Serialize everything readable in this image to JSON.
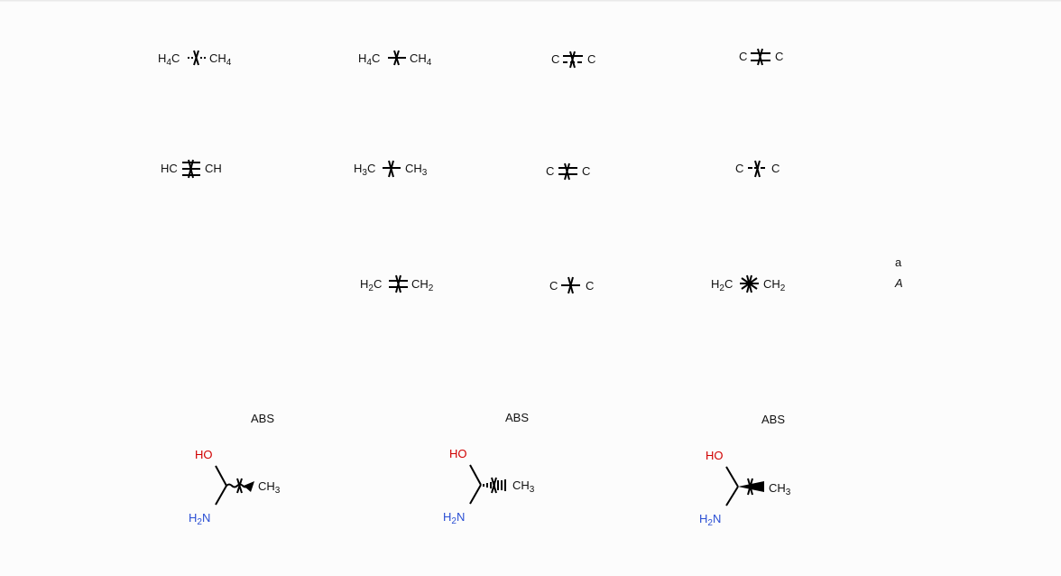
{
  "bond_molecules": [
    {
      "id": "m1",
      "left": {
        "main": "H",
        "sub": "4",
        "tail": "C"
      },
      "right": {
        "main": "CH",
        "sub": "4",
        "tail": ""
      }
    },
    {
      "id": "m2",
      "left": {
        "main": "H",
        "sub": "4",
        "tail": "C"
      },
      "right": {
        "main": "CH",
        "sub": "4",
        "tail": ""
      }
    },
    {
      "id": "m3",
      "left": {
        "main": "C",
        "sub": "",
        "tail": ""
      },
      "right": {
        "main": "C",
        "sub": "",
        "tail": ""
      }
    },
    {
      "id": "m4",
      "left": {
        "main": "C",
        "sub": "",
        "tail": ""
      },
      "right": {
        "main": "C",
        "sub": "",
        "tail": ""
      }
    },
    {
      "id": "m5",
      "left": {
        "main": "HC",
        "sub": "",
        "tail": ""
      },
      "right": {
        "main": "CH",
        "sub": "",
        "tail": ""
      }
    },
    {
      "id": "m6",
      "left": {
        "main": "H",
        "sub": "3",
        "tail": "C"
      },
      "right": {
        "main": "CH",
        "sub": "3",
        "tail": ""
      }
    },
    {
      "id": "m7",
      "left": {
        "main": "C",
        "sub": "",
        "tail": ""
      },
      "right": {
        "main": "C",
        "sub": "",
        "tail": ""
      }
    },
    {
      "id": "m8",
      "left": {
        "main": "C",
        "sub": "",
        "tail": ""
      },
      "right": {
        "main": "C",
        "sub": "",
        "tail": ""
      }
    },
    {
      "id": "m9",
      "left": {
        "main": "H",
        "sub": "2",
        "tail": "C"
      },
      "right": {
        "main": "CH",
        "sub": "2",
        "tail": ""
      }
    },
    {
      "id": "m10",
      "left": {
        "main": "C",
        "sub": "",
        "tail": ""
      },
      "right": {
        "main": "C",
        "sub": "",
        "tail": ""
      }
    },
    {
      "id": "m11",
      "left": {
        "main": "H",
        "sub": "2",
        "tail": "C"
      },
      "right": {
        "main": "CH",
        "sub": "2",
        "tail": ""
      }
    }
  ],
  "legend": {
    "line1": "a",
    "line2": "A"
  },
  "stereo_molecules": [
    {
      "id": "s1",
      "abs_label": "ABS",
      "ho": "HO",
      "nh2": {
        "a": "H",
        "sub": "2",
        "b": "N"
      },
      "ch3": {
        "main": "CH",
        "sub": "3"
      }
    },
    {
      "id": "s2",
      "abs_label": "ABS",
      "ho": "HO",
      "nh2": {
        "a": "H",
        "sub": "2",
        "b": "N"
      },
      "ch3": {
        "main": "CH",
        "sub": "3"
      }
    },
    {
      "id": "s3",
      "abs_label": "ABS",
      "ho": "HO",
      "nh2": {
        "a": "H",
        "sub": "2",
        "b": "N"
      },
      "ch3": {
        "main": "CH",
        "sub": "3"
      }
    }
  ],
  "colors": {
    "oxygen": "#d00000",
    "nitrogen": "#2a4fd4",
    "bond": "#000000"
  }
}
